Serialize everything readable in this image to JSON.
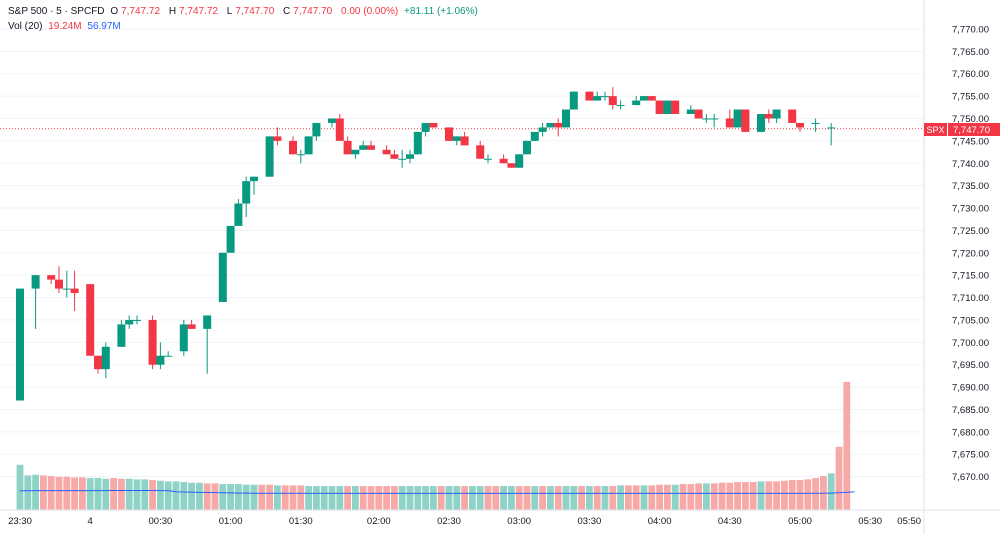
{
  "header": {
    "symbol": "S&P 500 · 5 · SPCFD",
    "open_label": "O",
    "open": "7,747.72",
    "high_label": "H",
    "high": "7,747.72",
    "low_label": "L",
    "low": "7,747.70",
    "close_label": "C",
    "close": "7,747.70",
    "change": "0.00 (0.00%)",
    "change_session": "+81.11 (+1.06%)"
  },
  "volume_legend": {
    "label": "Vol (20)",
    "volume": "19.24M",
    "ma": "56.97M"
  },
  "price_tag": {
    "symbol": "SPX",
    "price": "7,747.70",
    "value": 7747.7
  },
  "colors": {
    "up": "#089981",
    "down": "#f23645",
    "vol_up": "#8fd2c8",
    "vol_down": "#f7a9a7",
    "ma": "#2962ff"
  },
  "chart_data": {
    "type": "candlestick",
    "y_axis": {
      "min": 7665,
      "max": 7772,
      "ticks": [
        7670,
        7675,
        7680,
        7685,
        7690,
        7695,
        7700,
        7705,
        7710,
        7715,
        7720,
        7725,
        7730,
        7735,
        7740,
        7745,
        7750,
        7755,
        7760,
        7765,
        7770
      ]
    },
    "x_axis_labels": [
      "23:30",
      "4",
      "00:30",
      "01:00",
      "01:30",
      "02:00",
      "02:30",
      "03:00",
      "03:30",
      "04:00",
      "04:30",
      "05:00",
      "05:30",
      "05:50"
    ],
    "x_label_positions": [
      0,
      9,
      18,
      27,
      36,
      46,
      55,
      64,
      73,
      82,
      91,
      100,
      109,
      114
    ],
    "candles": [
      [
        7687,
        7712,
        7687,
        7712
      ],
      [
        7712,
        7715,
        7703,
        7715
      ],
      [
        7715,
        7715,
        7713,
        7714
      ],
      [
        7714,
        7717,
        7711,
        7712
      ],
      [
        7712,
        7716,
        7710,
        7712
      ],
      [
        7712,
        7716,
        7707,
        7711
      ],
      [
        7713,
        7713,
        7697,
        7697
      ],
      [
        7697,
        7697,
        7693,
        7694
      ],
      [
        7694,
        7700,
        7692,
        7699
      ],
      [
        7699,
        7705,
        7699,
        7704
      ],
      [
        7704,
        7706,
        7703,
        7705
      ],
      [
        7705,
        7706,
        7704,
        7705
      ],
      [
        7705,
        7706,
        7694,
        7695
      ],
      [
        7695,
        7700,
        7694,
        7697
      ],
      [
        7697,
        7698,
        7697,
        7697
      ],
      [
        7698,
        7705,
        7697,
        7704
      ],
      [
        7704,
        7705,
        7703,
        7703
      ],
      [
        7703,
        7706,
        7693,
        7706
      ],
      [
        7709,
        7720,
        7709,
        7720
      ],
      [
        7720,
        7726,
        7720,
        7726
      ],
      [
        7726,
        7732,
        7726,
        7731
      ],
      [
        7731,
        7737,
        7728,
        7736
      ],
      [
        7736,
        7737,
        7733,
        7737
      ],
      [
        7737,
        7746,
        7737,
        7746
      ],
      [
        7746,
        7748,
        7744,
        7745
      ],
      [
        7745,
        7746,
        7742,
        7742
      ],
      [
        7742,
        7743,
        7740,
        7742
      ],
      [
        7742,
        7746,
        7742,
        7746
      ],
      [
        7746,
        7749,
        7745,
        7749
      ],
      [
        7749,
        7750,
        7748,
        7750
      ],
      [
        7750,
        7751,
        7745,
        7745
      ],
      [
        7745,
        7746,
        7742,
        7742
      ],
      [
        7742,
        7743,
        7741,
        7743
      ],
      [
        7743,
        7745,
        7743,
        7744
      ],
      [
        7744,
        7745,
        7743,
        7743
      ],
      [
        7743,
        7744,
        7742,
        7742
      ],
      [
        7742,
        7743,
        7741,
        7741
      ],
      [
        7741,
        7743,
        7739,
        7741
      ],
      [
        7741,
        7743,
        7740,
        7742
      ],
      [
        7742,
        7747,
        7742,
        7747
      ],
      [
        7747,
        7749,
        7746,
        7749
      ],
      [
        7749,
        7749,
        7748,
        7748
      ],
      [
        7748,
        7748,
        7745,
        7745
      ],
      [
        7745,
        7746,
        7744,
        7746
      ],
      [
        7746,
        7747,
        7744,
        7744
      ],
      [
        7744,
        7745,
        7741,
        7741
      ],
      [
        7741,
        7742,
        7740,
        7741
      ],
      [
        7741,
        7742,
        7740,
        7740
      ],
      [
        7740,
        7740,
        7739,
        7739
      ],
      [
        7739,
        7742,
        7739,
        7742
      ],
      [
        7742,
        7745,
        7742,
        7745
      ],
      [
        7745,
        7747,
        7745,
        7747
      ],
      [
        7747,
        7749,
        7746,
        7748
      ],
      [
        7748,
        7749,
        7748,
        7749
      ],
      [
        7749,
        7750,
        7746,
        7748
      ],
      [
        7748,
        7752,
        7748,
        7752
      ],
      [
        7752,
        7756,
        7752,
        7756
      ],
      [
        7756,
        7756,
        7754,
        7754
      ],
      [
        7754,
        7756,
        7754,
        7755
      ],
      [
        7755,
        7756,
        7754,
        7755
      ],
      [
        7755,
        7757,
        7752,
        7753
      ],
      [
        7753,
        7754,
        7752,
        7753
      ],
      [
        7753,
        7755,
        7753,
        7754
      ],
      [
        7754,
        7755,
        7754,
        7755
      ],
      [
        7755,
        7755,
        7754,
        7754
      ],
      [
        7754,
        7754,
        7751,
        7751
      ],
      [
        7751,
        7754,
        7751,
        7754
      ],
      [
        7754,
        7754,
        7751,
        7751
      ],
      [
        7751,
        7753,
        7751,
        7752
      ],
      [
        7752,
        7752,
        7750,
        7750
      ],
      [
        7750,
        7751,
        7749,
        7750
      ],
      [
        7750,
        7751,
        7748,
        7750
      ],
      [
        7750,
        7752,
        7748,
        7748
      ],
      [
        7748,
        7752,
        7748,
        7752
      ],
      [
        7752,
        7752,
        7747,
        7747
      ],
      [
        7747,
        7751,
        7747,
        7751
      ],
      [
        7751,
        7752,
        7749,
        7750
      ],
      [
        7750,
        7752,
        7749,
        7752
      ],
      [
        7752,
        7752,
        7749,
        7749
      ],
      [
        7749,
        7749,
        7747,
        7748
      ],
      [
        7749,
        7750,
        7747,
        7749
      ],
      [
        7748,
        7749,
        7744,
        7748
      ]
    ],
    "candle_x_positions": [
      0,
      2,
      4,
      5,
      6,
      7,
      9,
      10,
      11,
      13,
      14,
      15,
      17,
      18,
      19,
      21,
      22,
      24,
      26,
      27,
      28,
      29,
      30,
      32,
      33,
      35,
      36,
      37,
      38,
      40,
      41,
      42,
      43,
      44,
      45,
      47,
      48,
      49,
      50,
      51,
      52,
      53,
      55,
      56,
      57,
      59,
      60,
      62,
      63,
      64,
      65,
      66,
      67,
      68,
      69,
      70,
      71,
      73,
      74,
      75,
      76,
      77,
      79,
      80,
      81,
      82,
      83,
      84,
      86,
      87,
      88,
      89,
      91,
      92,
      93,
      95,
      96,
      97,
      99,
      100,
      102,
      104
    ],
    "volume": {
      "max": 19.24,
      "values": [
        6.8,
        5.2,
        5.3,
        5.2,
        5.1,
        5.0,
        5.0,
        4.9,
        4.9,
        4.8,
        4.8,
        4.7,
        4.8,
        4.7,
        4.7,
        4.6,
        4.6,
        4.5,
        4.4,
        4.3,
        4.3,
        4.2,
        4.1,
        4.1,
        4.0,
        4.0,
        3.9,
        3.9,
        3.9,
        3.8,
        3.8,
        3.8,
        3.8,
        3.7,
        3.7,
        3.7,
        3.7,
        3.6,
        3.6,
        3.6,
        3.6,
        3.6,
        3.6,
        3.6,
        3.6,
        3.6,
        3.6,
        3.6,
        3.6,
        3.6,
        3.6,
        3.6,
        3.6,
        3.6,
        3.6,
        3.6,
        3.6,
        3.6,
        3.6,
        3.6,
        3.6,
        3.6,
        3.6,
        3.6,
        3.6,
        3.6,
        3.6,
        3.6,
        3.6,
        3.6,
        3.6,
        3.6,
        3.6,
        3.6,
        3.6,
        3.6,
        3.6,
        3.7,
        3.7,
        3.7,
        3.7,
        3.7,
        3.8,
        3.8,
        3.8,
        3.9,
        3.9,
        4.0,
        4.0,
        4.0,
        4.1,
        4.1,
        4.2,
        4.2,
        4.2,
        4.3,
        4.3,
        4.3,
        4.4,
        4.5,
        4.5,
        4.6,
        4.8,
        5.1,
        5.5,
        9.5,
        19.24
      ],
      "directions": [
        "u",
        "u",
        "u",
        "d",
        "d",
        "d",
        "d",
        "d",
        "d",
        "u",
        "u",
        "u",
        "d",
        "d",
        "u",
        "u",
        "u",
        "d",
        "u",
        "u",
        "u",
        "u",
        "u",
        "u",
        "d",
        "d",
        "u",
        "u",
        "u",
        "u",
        "u",
        "d",
        "d",
        "u",
        "d",
        "d",
        "d",
        "u",
        "u",
        "u",
        "u",
        "u",
        "d",
        "u",
        "d",
        "d",
        "d",
        "d",
        "d",
        "u",
        "u",
        "u",
        "u",
        "u",
        "d",
        "u",
        "u",
        "d",
        "u",
        "u",
        "d",
        "d",
        "u",
        "u",
        "d",
        "d",
        "u",
        "d",
        "u",
        "d",
        "u",
        "u",
        "d",
        "u",
        "d",
        "u",
        "d",
        "u",
        "d",
        "d",
        "u",
        "d",
        "d",
        "d",
        "u",
        "d",
        "d",
        "d",
        "u",
        "d",
        "d",
        "d",
        "d",
        "d",
        "d",
        "u",
        "d",
        "d",
        "d",
        "d",
        "d",
        "d",
        "d",
        "d",
        "u",
        "d",
        "d"
      ],
      "ma": [
        2.1,
        2.1,
        2.2,
        2.2,
        2.2,
        2.2,
        2.2,
        2.2,
        2.2,
        2.2,
        2.2,
        2.2,
        2.3,
        2.3,
        2.3,
        2.3,
        2.3,
        2.3,
        2.2,
        2.2,
        1.5,
        1.3,
        1.2,
        1.1,
        1.0,
        0.9,
        0.8,
        0.7,
        0.6,
        0.6,
        0.5,
        0.5,
        0.5,
        0.5,
        0.5,
        0.5,
        0.5,
        0.4,
        0.4,
        0.4,
        0.4,
        0.4,
        0.4,
        0.4,
        0.4,
        0.4,
        0.4,
        0.4,
        0.4,
        0.4,
        0.4,
        0.4,
        0.4,
        0.4,
        0.4,
        0.4,
        0.4,
        0.4,
        0.4,
        0.4,
        0.4,
        0.4,
        0.4,
        0.4,
        0.4,
        0.4,
        0.4,
        0.4,
        0.4,
        0.4,
        0.4,
        0.4,
        0.4,
        0.4,
        0.4,
        0.4,
        0.4,
        0.4,
        0.4,
        0.4,
        0.4,
        0.4,
        0.4,
        0.4,
        0.4,
        0.4,
        0.4,
        0.4,
        0.4,
        0.4,
        0.4,
        0.4,
        0.4,
        0.4,
        0.4,
        0.4,
        0.4,
        0.4,
        0.4,
        0.4,
        0.4,
        0.4,
        0.5,
        0.5,
        0.6,
        0.8,
        1.1,
        1.5
      ]
    }
  }
}
